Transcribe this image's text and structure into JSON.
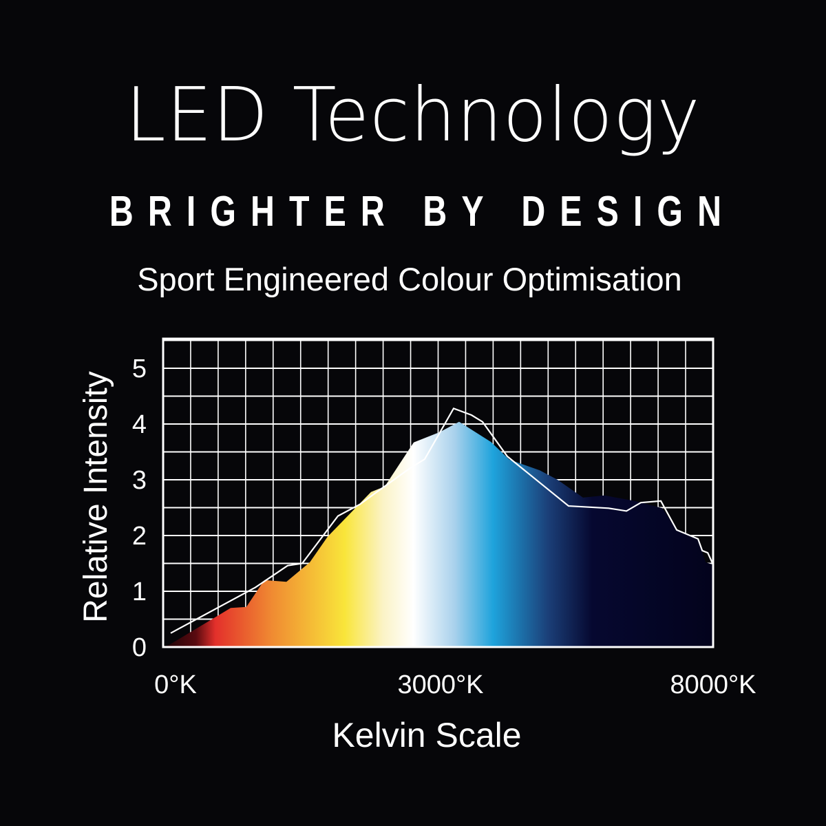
{
  "header": {
    "title": "LED Technology",
    "tagline": "BRIGHTER BY DESIGN",
    "subtitle": "Sport Engineered Colour Optimisation"
  },
  "colors": {
    "background": "#060609",
    "grid": "#ffffff",
    "line": "#ffffff",
    "spectrum_gradient": [
      {
        "kelvin": 0,
        "color": "#1a0306"
      },
      {
        "kelvin": 600,
        "color": "#9a1a1c"
      },
      {
        "kelvin": 560,
        "color": "#6a0e12"
      },
      {
        "kelvin": 560,
        "color": "#6a0e12"
      },
      {
        "kelvin": 560,
        "color": "#6a0e12"
      }
    ]
  },
  "chart_data": {
    "type": "area",
    "title": "",
    "xlabel": "Kelvin Scale",
    "ylabel": "Relative Intensity",
    "xlim": [
      0,
      8000
    ],
    "ylim": [
      0,
      5.5
    ],
    "grid": true,
    "x_ticks": [
      {
        "value": 0,
        "label": "0°K"
      },
      {
        "value": 3000,
        "label": "3000°K"
      },
      {
        "value": 8000,
        "label": "8000°K"
      }
    ],
    "y_ticks": [
      {
        "value": 0,
        "label": "0"
      },
      {
        "value": 1,
        "label": "1"
      },
      {
        "value": 2,
        "label": "2"
      },
      {
        "value": 3,
        "label": "3"
      },
      {
        "value": 4,
        "label": "4"
      },
      {
        "value": 5,
        "label": "5"
      }
    ],
    "series": [
      {
        "kind": "gradient-area",
        "x": [
          0,
          67,
          730,
          900,
          1094,
          1333,
          1586,
          1779,
          2248,
          2397,
          2710,
          2985,
          3341,
          3922,
          4263,
          4819,
          5147,
          5614,
          6006,
          6562,
          7067,
          7332,
          7724,
          7863,
          7990,
          8000
        ],
        "y": [
          0,
          0.04,
          0.7,
          0.72,
          1.2,
          1.17,
          1.52,
          1.98,
          2.78,
          2.88,
          3.67,
          3.85,
          4.04,
          3.68,
          3.36,
          3.17,
          3.0,
          2.68,
          2.72,
          2.62,
          2.49,
          2.1,
          1.94,
          1.52,
          1.48,
          1.48
        ]
      },
      {
        "kind": "line",
        "x": [
          82,
          998,
          1347,
          1504,
          1891,
          2129,
          2360,
          2672,
          2829,
          3240,
          3568,
          3770,
          4225,
          5349,
          6082,
          6410,
          6675,
          7042,
          7332,
          7724,
          7800,
          7901,
          7990
        ],
        "y": [
          0.25,
          1.07,
          1.46,
          1.5,
          2.35,
          2.56,
          2.84,
          3.21,
          3.37,
          4.28,
          4.16,
          4.04,
          3.42,
          2.53,
          2.49,
          2.44,
          2.59,
          2.62,
          2.1,
          1.94,
          1.73,
          1.69,
          1.5
        ]
      }
    ]
  }
}
